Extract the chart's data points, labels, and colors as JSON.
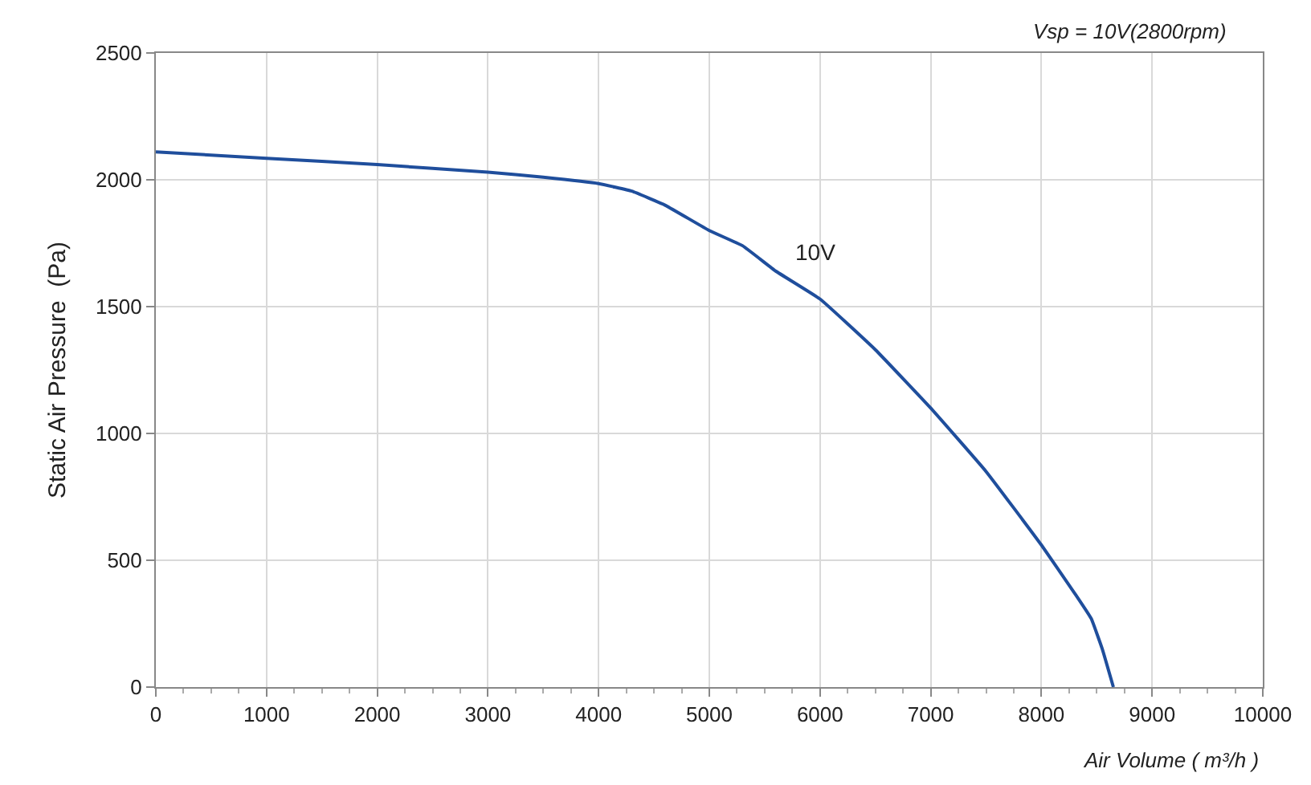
{
  "chart_data": {
    "type": "line",
    "xlabel": "Air Volume ( m³/h )",
    "ylabel": "Static Air Pressure  (Pa)",
    "annotations": [
      "Vsp = 10V(2800rpm)"
    ],
    "series": [
      {
        "name": "10V",
        "color": "#1f4e9c",
        "x": [
          0,
          1000,
          2000,
          3000,
          3500,
          4000,
          4300,
          4600,
          5000,
          5300,
          5600,
          6000,
          6500,
          7000,
          7500,
          8000,
          8300,
          8450,
          8550,
          8650
        ],
        "values": [
          2110,
          2085,
          2060,
          2030,
          2010,
          1985,
          1955,
          1900,
          1800,
          1740,
          1640,
          1530,
          1330,
          1100,
          850,
          560,
          370,
          270,
          150,
          0
        ]
      }
    ],
    "xlim": [
      0,
      10000
    ],
    "xticks": [
      0,
      1000,
      2000,
      3000,
      4000,
      5000,
      6000,
      7000,
      8000,
      9000,
      10000
    ],
    "ylim": [
      0,
      2500
    ],
    "yticks": [
      0,
      500,
      1000,
      1500,
      2000,
      2500
    ],
    "grid": true,
    "legend": false,
    "marker": "none",
    "line_style": "solid"
  }
}
